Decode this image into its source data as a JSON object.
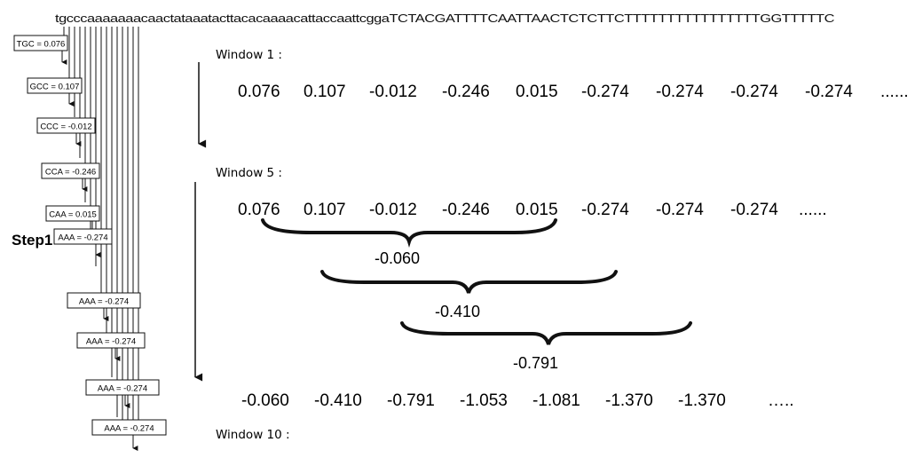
{
  "sequence": "tgcccaaaaaaacaactataaatacttacacaaaacattaccaattcggaTCTACGATTTTCAATTAACTCTCTTCTTTTTTTTTTTTTTTTGGTTTTTC",
  "step_label": "Step1",
  "trinucleotides": [
    {
      "label": "TGC = 0.076"
    },
    {
      "label": "GCC = 0.107"
    },
    {
      "label": "CCC = -0.012"
    },
    {
      "label": "CCA = -0.246"
    },
    {
      "label": "CAA = 0.015"
    },
    {
      "label": "AAA = -0.274"
    },
    {
      "label": "AAA = -0.274"
    },
    {
      "label": "AAA = -0.274"
    },
    {
      "label": "AAA = -0.274"
    },
    {
      "label": "AAA = -0.274"
    }
  ],
  "windows": {
    "w1": {
      "label": "Window 1 :",
      "values": [
        "0.076",
        "0.107",
        "-0.012",
        "-0.246",
        "0.015",
        "-0.274",
        "-0.274",
        "-0.274",
        "-0.274",
        "......"
      ]
    },
    "w5": {
      "label": "Window 5 :",
      "values": [
        "0.076",
        "0.107",
        "-0.012",
        "-0.246",
        "0.015",
        "-0.274",
        "-0.274",
        "-0.274",
        "......"
      ],
      "sums": [
        "-0.060",
        "-0.410",
        "-0.791"
      ]
    },
    "w10": {
      "label": "Window 10 :",
      "values": [
        "-0.060",
        "-0.410",
        "-0.791",
        "-1.053",
        "-1.081",
        "-1.370",
        "-1.370",
        "….."
      ]
    }
  },
  "colors": {
    "ink": "#111111",
    "background": "#ffffff"
  }
}
